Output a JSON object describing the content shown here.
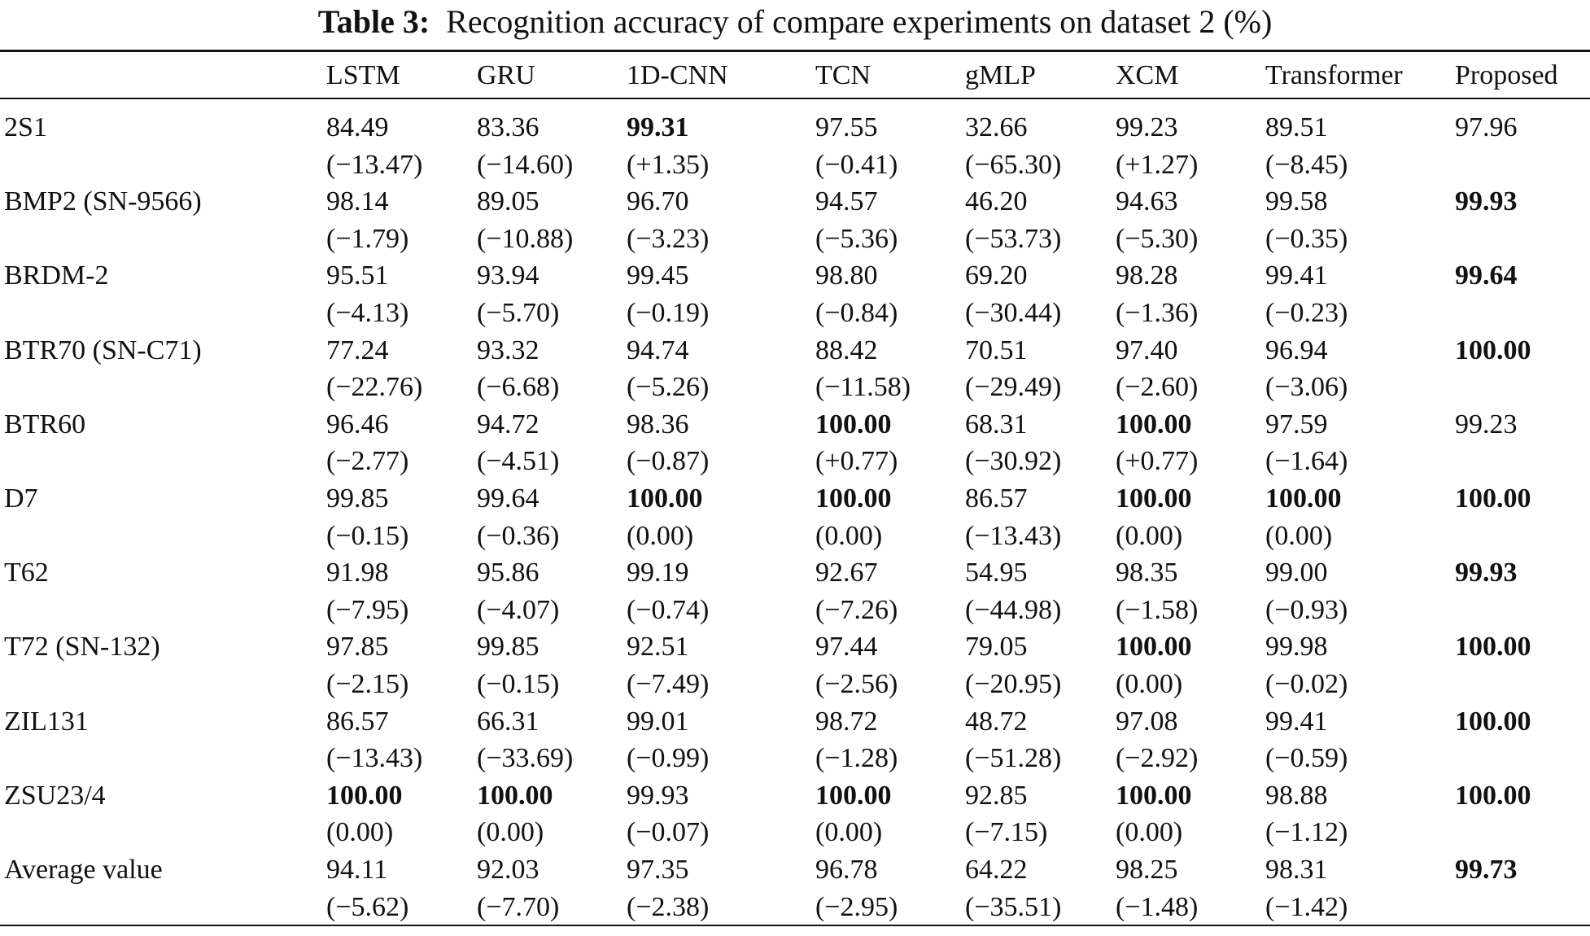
{
  "title": {
    "label": "Table 3:",
    "text": "Recognition accuracy of compare experiments on dataset 2 (%)"
  },
  "columns": [
    "",
    "LSTM",
    "GRU",
    "1D-CNN",
    "TCN",
    "gMLP",
    "XCM",
    "Transformer",
    "Proposed"
  ],
  "rows": [
    {
      "name": "2S1",
      "values": [
        "84.49",
        "83.36",
        "99.31",
        "97.55",
        "32.66",
        "99.23",
        "89.51",
        "97.96"
      ],
      "diffs": [
        "(−13.47)",
        "(−14.60)",
        "(+1.35)",
        "(−0.41)",
        "(−65.30)",
        "(+1.27)",
        "(−8.45)",
        ""
      ],
      "bold": [
        2
      ]
    },
    {
      "name": "BMP2 (SN-9566)",
      "values": [
        "98.14",
        "89.05",
        "96.70",
        "94.57",
        "46.20",
        "94.63",
        "99.58",
        "99.93"
      ],
      "diffs": [
        "(−1.79)",
        "(−10.88)",
        "(−3.23)",
        "(−5.36)",
        "(−53.73)",
        "(−5.30)",
        "(−0.35)",
        ""
      ],
      "bold": [
        7
      ]
    },
    {
      "name": "BRDM-2",
      "values": [
        "95.51",
        "93.94",
        "99.45",
        "98.80",
        "69.20",
        "98.28",
        "99.41",
        "99.64"
      ],
      "diffs": [
        "(−4.13)",
        "(−5.70)",
        "(−0.19)",
        "(−0.84)",
        "(−30.44)",
        "(−1.36)",
        "(−0.23)",
        ""
      ],
      "bold": [
        7
      ]
    },
    {
      "name": "BTR70 (SN-C71)",
      "values": [
        "77.24",
        "93.32",
        "94.74",
        "88.42",
        "70.51",
        "97.40",
        "96.94",
        "100.00"
      ],
      "diffs": [
        "(−22.76)",
        "(−6.68)",
        "(−5.26)",
        "(−11.58)",
        "(−29.49)",
        "(−2.60)",
        "(−3.06)",
        ""
      ],
      "bold": [
        7
      ]
    },
    {
      "name": "BTR60",
      "values": [
        "96.46",
        "94.72",
        "98.36",
        "100.00",
        "68.31",
        "100.00",
        "97.59",
        "99.23"
      ],
      "diffs": [
        "(−2.77)",
        "(−4.51)",
        "(−0.87)",
        "(+0.77)",
        "(−30.92)",
        "(+0.77)",
        "(−1.64)",
        ""
      ],
      "bold": [
        3,
        5
      ]
    },
    {
      "name": "D7",
      "values": [
        "99.85",
        "99.64",
        "100.00",
        "100.00",
        "86.57",
        "100.00",
        "100.00",
        "100.00"
      ],
      "diffs": [
        "(−0.15)",
        "(−0.36)",
        "(0.00)",
        "(0.00)",
        "(−13.43)",
        "(0.00)",
        "(0.00)",
        ""
      ],
      "bold": [
        2,
        3,
        5,
        6,
        7
      ]
    },
    {
      "name": "T62",
      "values": [
        "91.98",
        "95.86",
        "99.19",
        "92.67",
        "54.95",
        "98.35",
        "99.00",
        "99.93"
      ],
      "diffs": [
        "(−7.95)",
        "(−4.07)",
        "(−0.74)",
        "(−7.26)",
        "(−44.98)",
        "(−1.58)",
        "(−0.93)",
        ""
      ],
      "bold": [
        7
      ]
    },
    {
      "name": "T72 (SN-132)",
      "values": [
        "97.85",
        "99.85",
        "92.51",
        "97.44",
        "79.05",
        "100.00",
        "99.98",
        "100.00"
      ],
      "diffs": [
        "(−2.15)",
        "(−0.15)",
        "(−7.49)",
        "(−2.56)",
        "(−20.95)",
        "(0.00)",
        "(−0.02)",
        ""
      ],
      "bold": [
        5,
        7
      ]
    },
    {
      "name": "ZIL131",
      "values": [
        "86.57",
        "66.31",
        "99.01",
        "98.72",
        "48.72",
        "97.08",
        "99.41",
        "100.00"
      ],
      "diffs": [
        "(−13.43)",
        "(−33.69)",
        "(−0.99)",
        "(−1.28)",
        "(−51.28)",
        "(−2.92)",
        "(−0.59)",
        ""
      ],
      "bold": [
        7
      ]
    },
    {
      "name": "ZSU23/4",
      "values": [
        "100.00",
        "100.00",
        "99.93",
        "100.00",
        "92.85",
        "100.00",
        "98.88",
        "100.00"
      ],
      "diffs": [
        "(0.00)",
        "(0.00)",
        "(−0.07)",
        "(0.00)",
        "(−7.15)",
        "(0.00)",
        "(−1.12)",
        ""
      ],
      "bold": [
        0,
        1,
        3,
        5,
        7
      ]
    },
    {
      "name": "Average value",
      "values": [
        "94.11",
        "92.03",
        "97.35",
        "96.78",
        "64.22",
        "98.25",
        "98.31",
        "99.73"
      ],
      "diffs": [
        "(−5.62)",
        "(−7.70)",
        "(−2.38)",
        "(−2.95)",
        "(−35.51)",
        "(−1.48)",
        "(−1.42)",
        ""
      ],
      "bold": [
        7
      ]
    }
  ]
}
